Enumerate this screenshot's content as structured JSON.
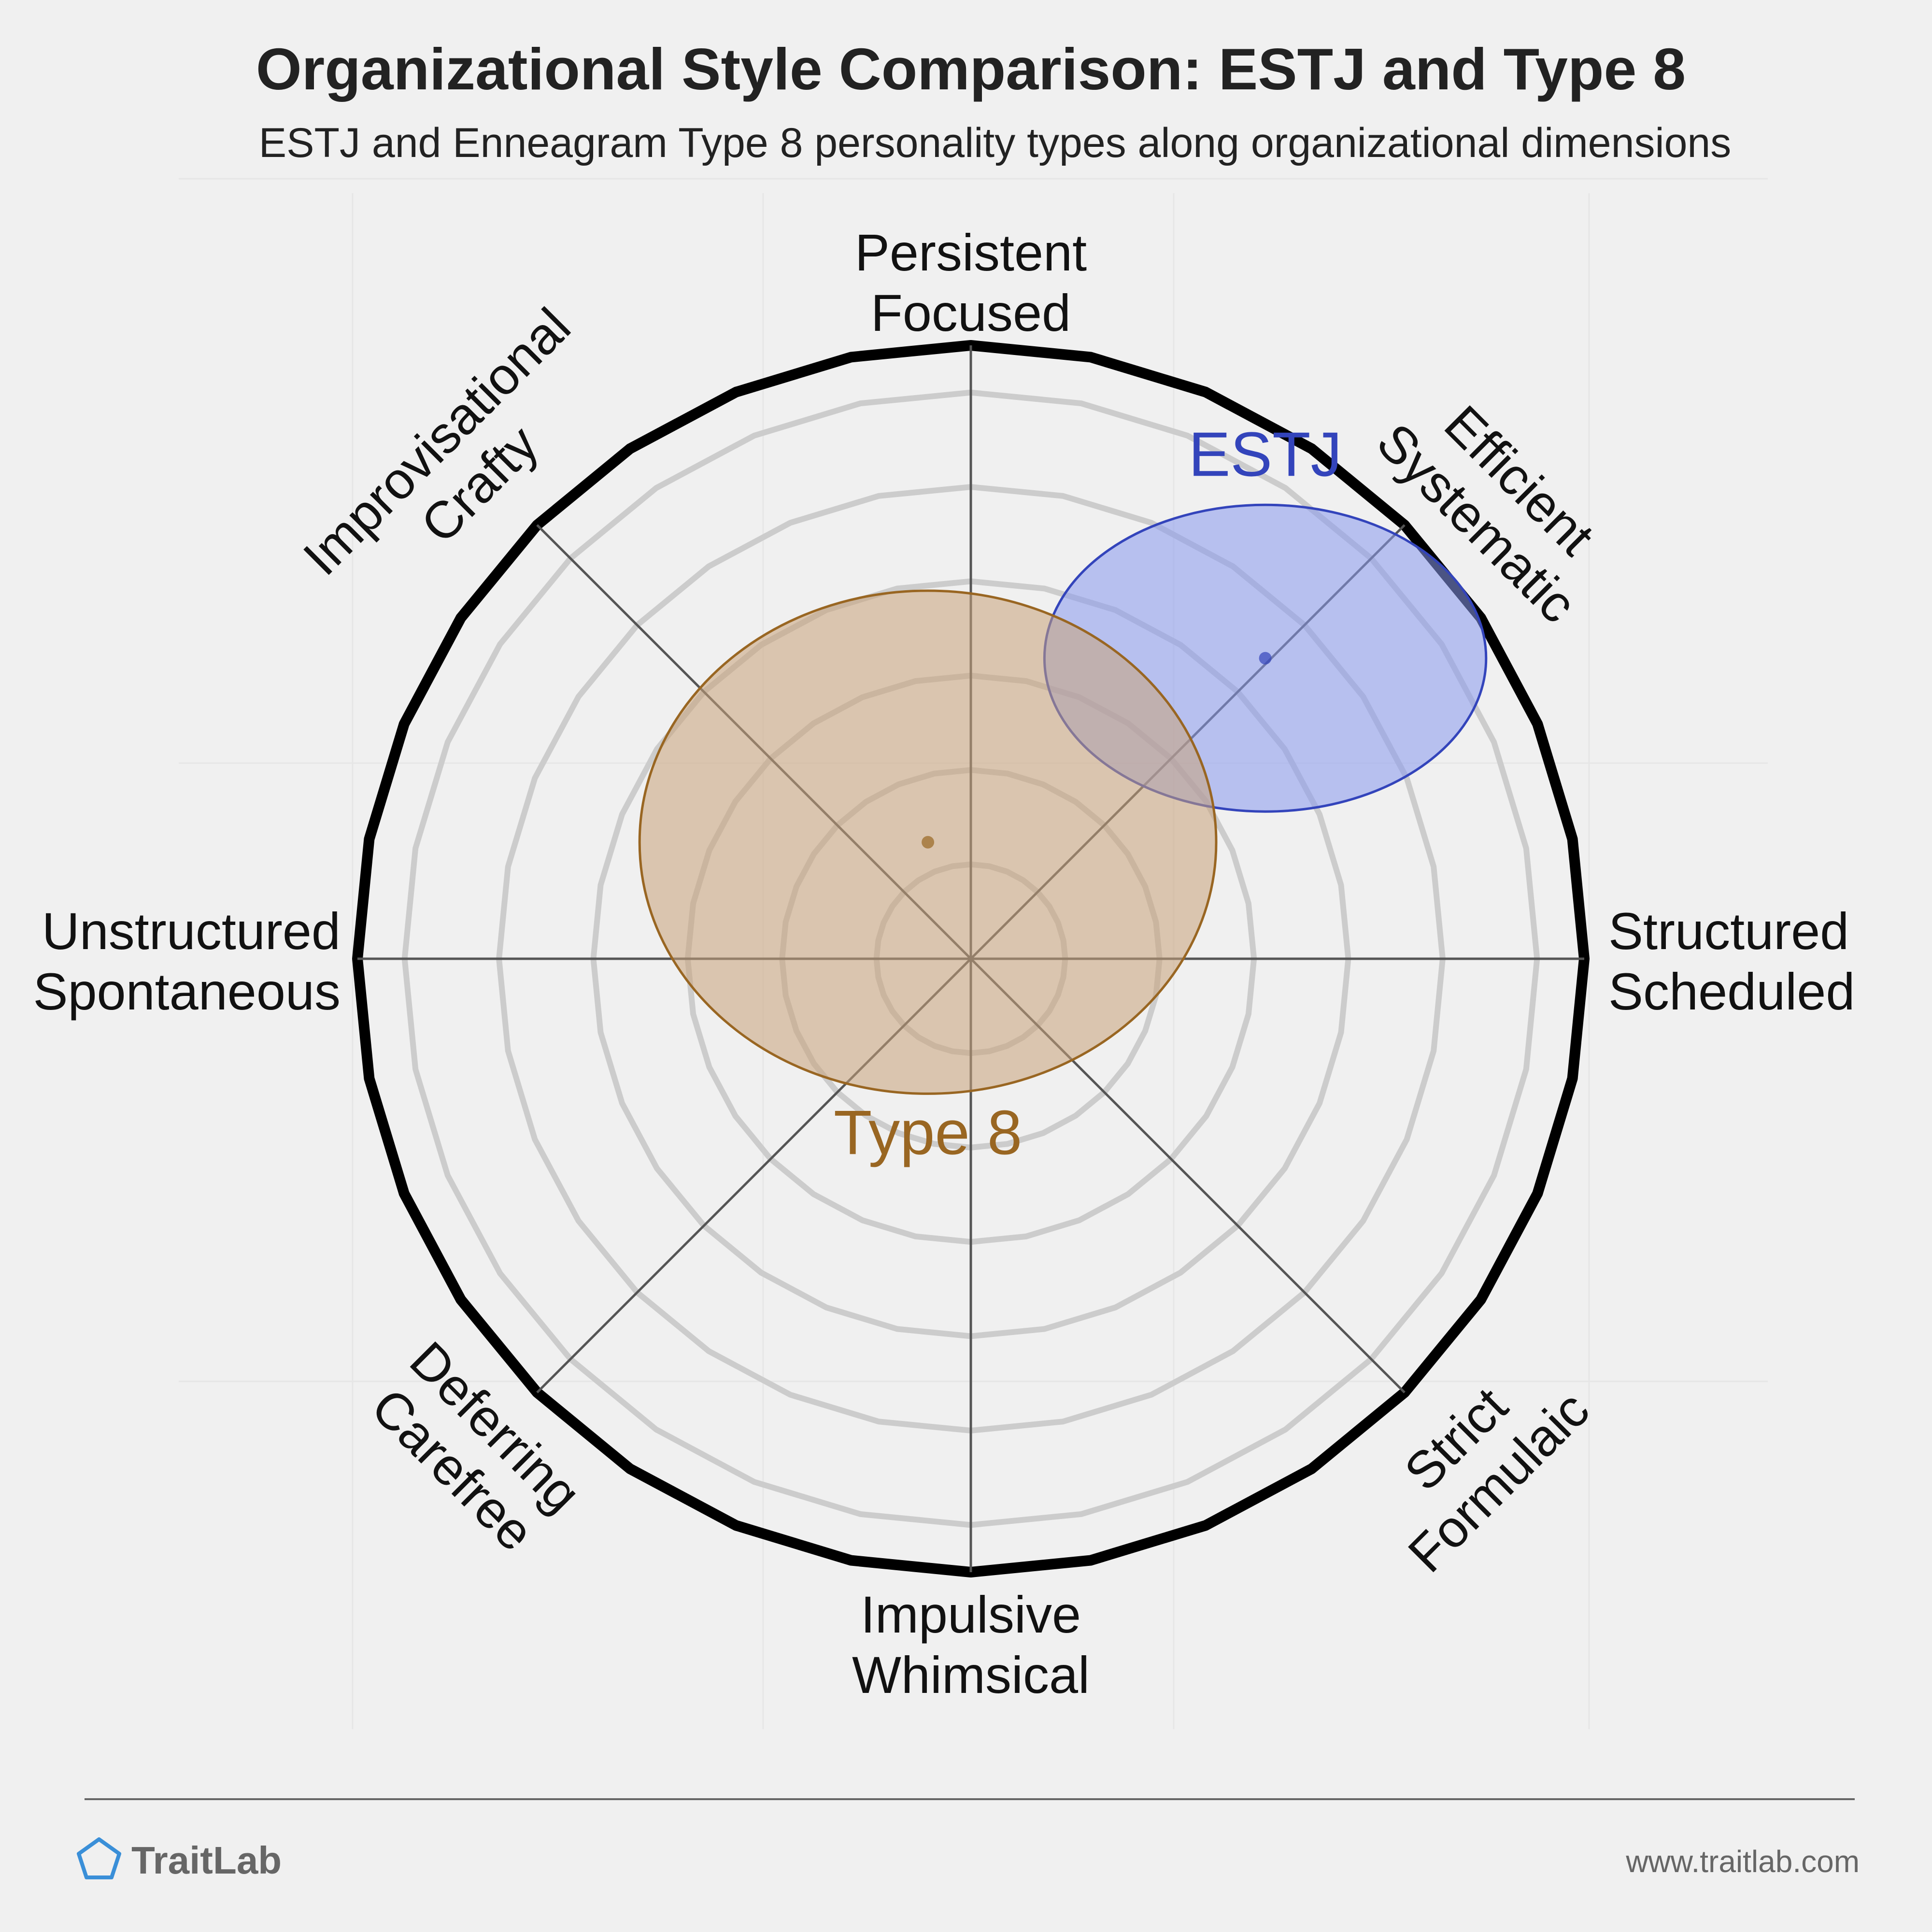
{
  "chart_data": {
    "type": "radar-scatter",
    "title": "Organizational Style Comparison: ESTJ and Type 8",
    "subtitle": "ESTJ and Enneagram Type 8 personality types along organizational dimensions",
    "axes": [
      {
        "lines": [
          "Structured",
          "Scheduled"
        ]
      },
      {
        "lines": [
          "Efficient",
          "Systematic"
        ]
      },
      {
        "lines": [
          "Persistent",
          "Focused"
        ]
      },
      {
        "lines": [
          "Improvisational",
          "Crafty"
        ]
      },
      {
        "lines": [
          "Unstructured",
          "Spontaneous"
        ]
      },
      {
        "lines": [
          "Deferring",
          "Carefree"
        ]
      },
      {
        "lines": [
          "Impulsive",
          "Whimsical"
        ]
      },
      {
        "lines": [
          "Strict",
          "Formulaic"
        ]
      }
    ],
    "rings": 6,
    "grid": true,
    "series": [
      {
        "name": "ESTJ",
        "x": 0.48,
        "y": 0.49,
        "spread_x": 0.36,
        "spread_y": 0.25,
        "color": "#3344bb",
        "fill": "#8899ee"
      },
      {
        "name": "Type 8",
        "x": -0.07,
        "y": 0.19,
        "spread_x": 0.47,
        "spread_y": 0.41,
        "color": "#996622",
        "fill": "#c8a37a"
      }
    ]
  },
  "footer": {
    "brand": "TraitLab",
    "url": "www.traitlab.com"
  },
  "colors": {
    "background": "#f0f0f0",
    "outer_ring": "#000000",
    "inner_rings": "#cccccc",
    "spokes": "#555555",
    "brand_icon": "#3a8fd8"
  }
}
